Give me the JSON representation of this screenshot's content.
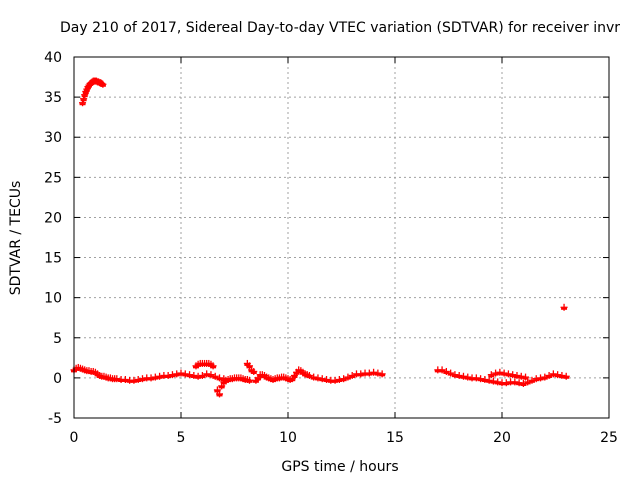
{
  "chart_data": {
    "type": "scatter",
    "title": "Day 210 of 2017, Sidereal Day-to-day VTEC variation (SDTVAR) for receiver invr",
    "xlabel": "GPS time / hours",
    "ylabel": "SDTVAR / TECUs",
    "xlim": [
      0,
      25
    ],
    "ylim": [
      -5,
      40
    ],
    "xticks": [
      0,
      5,
      10,
      15,
      20,
      25
    ],
    "yticks": [
      -5,
      0,
      5,
      10,
      15,
      20,
      25,
      30,
      35,
      40
    ],
    "grid": true,
    "marker": "+",
    "color": "#ff0000",
    "series": [
      {
        "name": "SDTVAR",
        "x": [
          0.4,
          0.45,
          0.5,
          0.55,
          0.6,
          0.65,
          0.7,
          0.75,
          0.8,
          0.85,
          0.9,
          0.95,
          1.0,
          1.05,
          1.1,
          1.15,
          1.2,
          1.25,
          1.3,
          1.35,
          0.0,
          0.1,
          0.2,
          0.3,
          0.4,
          0.5,
          0.6,
          0.7,
          0.8,
          0.9,
          1.0,
          1.1,
          1.2,
          1.3,
          1.4,
          1.5,
          1.6,
          1.7,
          1.8,
          1.9,
          2.0,
          2.2,
          2.4,
          2.6,
          2.8,
          3.0,
          3.2,
          3.4,
          3.6,
          3.8,
          4.0,
          4.2,
          4.4,
          4.6,
          4.8,
          5.0,
          5.2,
          5.4,
          5.6,
          5.8,
          5.7,
          5.8,
          5.9,
          6.0,
          6.1,
          6.2,
          6.3,
          6.4,
          6.5,
          6.0,
          6.2,
          6.4,
          6.6,
          6.8,
          7.0,
          6.7,
          6.8,
          6.9,
          7.0,
          7.1,
          7.2,
          7.3,
          7.4,
          7.5,
          7.6,
          7.7,
          7.8,
          7.9,
          8.0,
          8.1,
          8.2,
          8.1,
          8.2,
          8.3,
          8.4,
          8.5,
          8.6,
          8.7,
          8.8,
          8.9,
          9.0,
          9.1,
          9.2,
          9.3,
          9.4,
          9.5,
          9.6,
          9.7,
          9.8,
          9.9,
          10.0,
          10.1,
          10.2,
          10.3,
          10.4,
          10.5,
          10.6,
          10.7,
          10.8,
          10.9,
          11.0,
          11.2,
          11.4,
          11.6,
          11.8,
          12.0,
          12.2,
          12.4,
          12.6,
          12.8,
          13.0,
          13.2,
          13.4,
          13.6,
          13.8,
          14.0,
          14.2,
          14.4,
          17.0,
          17.2,
          17.4,
          17.6,
          17.8,
          18.0,
          18.2,
          18.4,
          18.6,
          18.8,
          19.0,
          19.2,
          19.4,
          19.6,
          19.8,
          20.0,
          20.2,
          20.4,
          20.6,
          20.8,
          21.0,
          21.2,
          21.4,
          21.6,
          21.8,
          22.0,
          22.2,
          22.4,
          22.6,
          22.8,
          23.0,
          19.5,
          19.7,
          19.9,
          20.1,
          20.3,
          20.5,
          20.7,
          20.9,
          21.1,
          22.9
        ],
        "y": [
          34.3,
          34.8,
          35.3,
          35.7,
          36.0,
          36.3,
          36.5,
          36.7,
          36.8,
          36.9,
          37.0,
          37.0,
          37.0,
          37.0,
          36.9,
          36.9,
          36.8,
          36.8,
          36.7,
          36.6,
          1.0,
          1.2,
          1.3,
          1.2,
          1.1,
          1.0,
          0.9,
          0.9,
          0.8,
          0.8,
          0.7,
          0.5,
          0.3,
          0.2,
          0.2,
          0.1,
          0.0,
          0.0,
          -0.1,
          -0.1,
          -0.1,
          -0.2,
          -0.2,
          -0.3,
          -0.3,
          -0.2,
          -0.1,
          0.0,
          0.0,
          0.1,
          0.2,
          0.3,
          0.3,
          0.4,
          0.5,
          0.6,
          0.5,
          0.4,
          0.3,
          0.2,
          1.5,
          1.7,
          1.8,
          1.8,
          1.8,
          1.8,
          1.8,
          1.7,
          1.5,
          0.3,
          0.5,
          0.4,
          0.2,
          0.0,
          -0.1,
          -1.5,
          -2.0,
          -1.0,
          -0.5,
          -0.3,
          -0.2,
          -0.1,
          -0.1,
          0.0,
          0.0,
          0.0,
          0.0,
          -0.1,
          -0.2,
          -0.2,
          -0.3,
          1.8,
          1.5,
          1.0,
          0.8,
          -0.3,
          0.0,
          0.4,
          0.4,
          0.3,
          0.1,
          0.0,
          -0.1,
          -0.2,
          -0.1,
          0.0,
          0.0,
          0.1,
          0.1,
          0.0,
          -0.1,
          -0.2,
          -0.1,
          0.3,
          0.7,
          1.0,
          0.9,
          0.7,
          0.5,
          0.4,
          0.3,
          0.1,
          0.0,
          -0.1,
          -0.2,
          -0.3,
          -0.3,
          -0.2,
          -0.1,
          0.1,
          0.3,
          0.5,
          0.5,
          0.6,
          0.6,
          0.7,
          0.6,
          0.5,
          1.0,
          1.0,
          0.8,
          0.6,
          0.4,
          0.3,
          0.2,
          0.1,
          0.0,
          0.0,
          -0.1,
          -0.2,
          -0.3,
          -0.4,
          -0.5,
          -0.6,
          -0.6,
          -0.5,
          -0.5,
          -0.6,
          -0.7,
          -0.5,
          -0.3,
          -0.1,
          0.0,
          0.1,
          0.3,
          0.5,
          0.4,
          0.3,
          0.2,
          0.4,
          0.6,
          0.7,
          0.6,
          0.5,
          0.4,
          0.3,
          0.2,
          0.1,
          8.8
        ]
      }
    ]
  }
}
